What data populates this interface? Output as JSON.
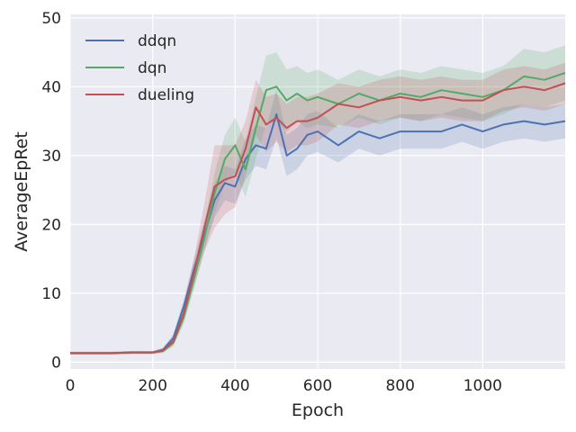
{
  "chart_data": {
    "type": "line",
    "title": "",
    "xlabel": "Epoch",
    "ylabel": "AverageEpRet",
    "xlim": [
      0,
      1200
    ],
    "ylim": [
      -1,
      50.5
    ],
    "xticks": [
      0,
      200,
      400,
      600,
      800,
      1000
    ],
    "yticks": [
      0,
      10,
      20,
      30,
      40,
      50
    ],
    "grid": true,
    "legend_position": "top-left",
    "x": [
      0,
      50,
      100,
      150,
      200,
      225,
      250,
      275,
      300,
      325,
      350,
      375,
      400,
      425,
      450,
      475,
      500,
      525,
      550,
      575,
      600,
      650,
      700,
      750,
      800,
      850,
      900,
      950,
      1000,
      1050,
      1100,
      1150,
      1200
    ],
    "series": [
      {
        "name": "ddqn",
        "color": "#4c72b0",
        "values": [
          1.3,
          1.3,
          1.3,
          1.4,
          1.4,
          1.8,
          3.5,
          8.0,
          13.5,
          18.5,
          23.5,
          26.0,
          25.5,
          29.5,
          31.5,
          31.0,
          36.0,
          30.0,
          31.0,
          33.0,
          33.5,
          31.5,
          33.5,
          32.5,
          33.5,
          33.5,
          33.5,
          34.5,
          33.5,
          34.5,
          35.0,
          34.5,
          35.0
        ],
        "band": [
          0.2,
          0.2,
          0.2,
          0.2,
          0.2,
          0.3,
          0.6,
          1.0,
          1.5,
          2.0,
          2.5,
          2.5,
          2.5,
          3.0,
          3.0,
          3.0,
          3.5,
          3.0,
          3.0,
          3.0,
          3.0,
          2.5,
          2.5,
          2.5,
          2.5,
          2.5,
          2.5,
          2.5,
          2.5,
          2.5,
          2.5,
          2.5,
          2.5
        ]
      },
      {
        "name": "dqn",
        "color": "#55a868",
        "values": [
          1.3,
          1.3,
          1.3,
          1.4,
          1.4,
          1.6,
          2.8,
          6.5,
          12.0,
          18.0,
          24.5,
          29.5,
          31.5,
          28.0,
          34.0,
          39.5,
          40.0,
          38.0,
          39.0,
          38.0,
          38.5,
          37.5,
          39.0,
          38.0,
          39.0,
          38.5,
          39.5,
          39.0,
          38.5,
          39.5,
          41.5,
          41.0,
          42.0
        ],
        "band": [
          0.2,
          0.2,
          0.2,
          0.2,
          0.2,
          0.3,
          0.5,
          1.0,
          1.5,
          2.0,
          3.0,
          3.5,
          4.0,
          4.0,
          4.5,
          5.0,
          5.0,
          4.5,
          4.0,
          4.0,
          4.0,
          3.5,
          3.5,
          3.5,
          3.5,
          3.5,
          3.5,
          3.5,
          3.5,
          3.5,
          4.0,
          4.0,
          4.0
        ]
      },
      {
        "name": "dueling",
        "color": "#c44e52",
        "values": [
          1.3,
          1.3,
          1.3,
          1.4,
          1.4,
          1.7,
          3.0,
          7.0,
          13.0,
          19.5,
          25.5,
          26.5,
          27.0,
          31.0,
          37.0,
          34.5,
          35.5,
          34.0,
          35.0,
          35.0,
          35.5,
          37.5,
          37.0,
          38.0,
          38.5,
          38.0,
          38.5,
          38.0,
          38.0,
          39.5,
          40.0,
          39.5,
          40.5
        ],
        "band": [
          0.2,
          0.2,
          0.2,
          0.2,
          0.2,
          0.3,
          0.6,
          1.2,
          2.0,
          3.5,
          6.0,
          5.0,
          4.5,
          4.0,
          4.0,
          4.0,
          3.5,
          3.5,
          3.5,
          3.5,
          3.5,
          3.0,
          3.0,
          3.0,
          3.0,
          3.0,
          3.0,
          3.0,
          3.0,
          3.0,
          3.0,
          3.0,
          3.0
        ]
      }
    ]
  },
  "colors": {
    "plot_background": "#eaeaf2",
    "grid": "#ffffff",
    "text": "#262626"
  }
}
